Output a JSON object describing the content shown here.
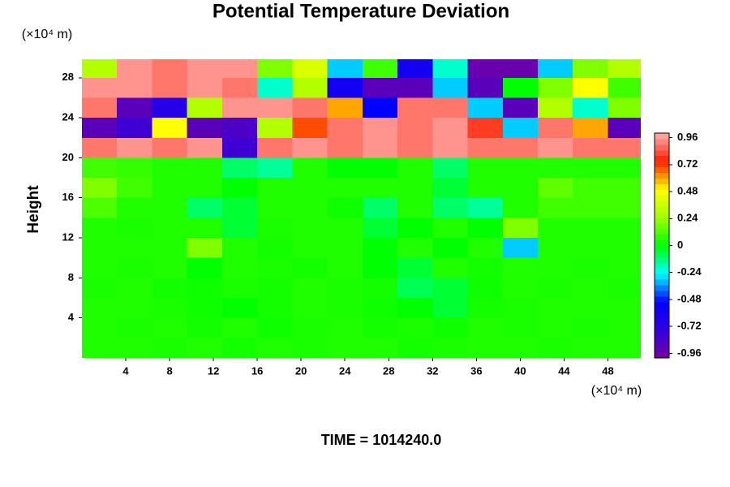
{
  "chart_data": {
    "type": "heatmap",
    "title": "Potential Temperature Deviation",
    "y_label": "Height",
    "y_unit_label": "(×10⁴ m)",
    "x_unit_label": "(×10⁴ m)",
    "footer": "TIME = 1014240.0",
    "xlim": [
      0,
      51
    ],
    "ylim": [
      0,
      29.85
    ],
    "xticks": [
      4,
      8,
      12,
      16,
      20,
      24,
      28,
      32,
      36,
      40,
      44,
      48
    ],
    "yticks": [
      4,
      8,
      12,
      16,
      20,
      24,
      28
    ],
    "x": [
      1.6,
      4.8,
      8,
      11.2,
      14.4,
      17.6,
      20.8,
      24,
      27.2,
      30.4,
      33.6,
      36.8,
      40,
      43.2,
      46.4,
      49.6
    ],
    "y": [
      1,
      3,
      5,
      7,
      9,
      11,
      13,
      15,
      17,
      19,
      21,
      23,
      25,
      27,
      29
    ],
    "z": [
      [
        0.05,
        0.05,
        0.04,
        0.05,
        0.03,
        0.05,
        0.04,
        0.05,
        0.05,
        0.03,
        0.04,
        0.05,
        0.05,
        0.04,
        0.05,
        0.05
      ],
      [
        0.05,
        0.04,
        0.05,
        0.03,
        0.05,
        0.02,
        0.04,
        0.05,
        0.03,
        0.04,
        0.02,
        0.05,
        0.04,
        0.05,
        0.04,
        0.05
      ],
      [
        0.05,
        0.05,
        0.04,
        0.02,
        0.0,
        0.03,
        0.05,
        0.04,
        0.02,
        0.0,
        -0.05,
        0.03,
        0.04,
        0.05,
        0.05,
        0.05
      ],
      [
        0.04,
        0.05,
        0.03,
        0.02,
        0.04,
        0.03,
        0.05,
        0.04,
        0.03,
        -0.08,
        -0.05,
        0.02,
        0.05,
        0.04,
        0.05,
        0.04
      ],
      [
        0.05,
        0.04,
        0.05,
        0.0,
        0.05,
        0.04,
        0.03,
        0.05,
        0.0,
        -0.05,
        0.05,
        0.03,
        0.05,
        0.05,
        0.04,
        0.05
      ],
      [
        0.05,
        0.05,
        0.05,
        0.2,
        0.05,
        0.03,
        0.05,
        0.05,
        0.0,
        0.05,
        0.0,
        0.05,
        -0.3,
        0.05,
        0.05,
        0.05
      ],
      [
        0.05,
        0.04,
        0.05,
        0.05,
        -0.05,
        0.04,
        0.05,
        0.05,
        -0.05,
        0.0,
        0.05,
        0.0,
        0.2,
        0.05,
        0.05,
        0.05
      ],
      [
        0.12,
        0.05,
        0.05,
        -0.1,
        -0.05,
        0.05,
        0.05,
        0.02,
        -0.1,
        0.05,
        -0.1,
        -0.15,
        0.05,
        0.1,
        0.1,
        0.1
      ],
      [
        0.2,
        0.1,
        0.05,
        0.05,
        0.0,
        0.05,
        0.05,
        0.05,
        0.05,
        0.05,
        -0.05,
        0.05,
        0.05,
        0.15,
        0.1,
        0.1
      ],
      [
        0.1,
        0.08,
        0.05,
        0.05,
        -0.1,
        -0.15,
        0.05,
        0.0,
        0.0,
        0.05,
        -0.1,
        0.05,
        0.05,
        0.05,
        0.05,
        0.05
      ],
      [
        0.9,
        0.95,
        0.9,
        0.95,
        -0.8,
        0.9,
        0.95,
        0.9,
        0.95,
        0.9,
        0.95,
        0.9,
        0.9,
        0.95,
        0.9,
        0.9
      ],
      [
        -0.9,
        -0.8,
        0.5,
        -0.9,
        -0.85,
        0.3,
        0.7,
        0.9,
        0.95,
        0.9,
        0.95,
        0.8,
        -0.3,
        0.9,
        0.6,
        -0.9
      ],
      [
        0.9,
        -0.9,
        -0.7,
        0.3,
        0.95,
        0.95,
        0.9,
        0.6,
        -0.5,
        0.9,
        0.9,
        -0.3,
        -0.9,
        0.3,
        -0.2,
        0.2
      ],
      [
        0.95,
        0.95,
        0.9,
        0.95,
        0.9,
        -0.2,
        0.3,
        -0.6,
        -0.9,
        -0.9,
        -0.3,
        -0.9,
        0.0,
        0.2,
        0.5,
        0.1
      ],
      [
        0.3,
        0.95,
        0.9,
        0.95,
        0.95,
        0.2,
        0.4,
        -0.3,
        0.1,
        -0.6,
        -0.2,
        -0.95,
        -0.95,
        -0.3,
        0.2,
        0.3
      ]
    ],
    "clim": [
      -1,
      1
    ],
    "cticks": [
      -0.96,
      -0.72,
      -0.48,
      -0.24,
      0,
      0.24,
      0.48,
      0.72,
      0.96
    ],
    "colormap": [
      "#7800a0",
      "#3000e0",
      "#0000ff",
      "#00ffff",
      "#00ff00",
      "#a0ff00",
      "#ffff00",
      "#ff2000",
      "#ffb0b0"
    ]
  }
}
